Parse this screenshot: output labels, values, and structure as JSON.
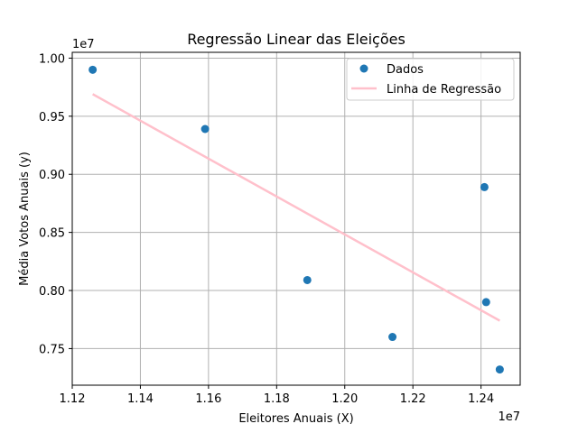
{
  "chart_data": {
    "type": "scatter",
    "title": "Regressão Linear das Eleições",
    "xlabel": "Eleitores Anuais (X)",
    "ylabel": "Média Votos Anuais (y)",
    "x_offset_label": "1e7",
    "y_offset_label": "1e7",
    "xlim": [
      1.12,
      1.2515
    ],
    "ylim": [
      0.7185,
      1.005
    ],
    "x_ticks": [
      1.12,
      1.14,
      1.16,
      1.18,
      1.2,
      1.22,
      1.24
    ],
    "x_tick_labels": [
      "1.12",
      "1.14",
      "1.16",
      "1.18",
      "1.20",
      "1.22",
      "1.24"
    ],
    "y_ticks": [
      0.75,
      0.8,
      0.85,
      0.9,
      0.95,
      1.0
    ],
    "y_tick_labels": [
      "0.75",
      "0.80",
      "0.85",
      "0.90",
      "0.95",
      "1.00"
    ],
    "grid": true,
    "legend_position": "top-right",
    "series": [
      {
        "name": "Dados",
        "kind": "scatter",
        "color": "#1f77b4",
        "points": [
          {
            "x": 1.126,
            "y": 0.99
          },
          {
            "x": 1.159,
            "y": 0.939
          },
          {
            "x": 1.189,
            "y": 0.809
          },
          {
            "x": 1.214,
            "y": 0.76
          },
          {
            "x": 1.241,
            "y": 0.889
          },
          {
            "x": 1.2415,
            "y": 0.79
          },
          {
            "x": 1.2455,
            "y": 0.732
          }
        ]
      },
      {
        "name": "Linha de Regressão",
        "kind": "line",
        "color": "#ffc0cb",
        "points": [
          {
            "x": 1.126,
            "y": 0.969
          },
          {
            "x": 1.2455,
            "y": 0.774
          }
        ]
      }
    ]
  }
}
